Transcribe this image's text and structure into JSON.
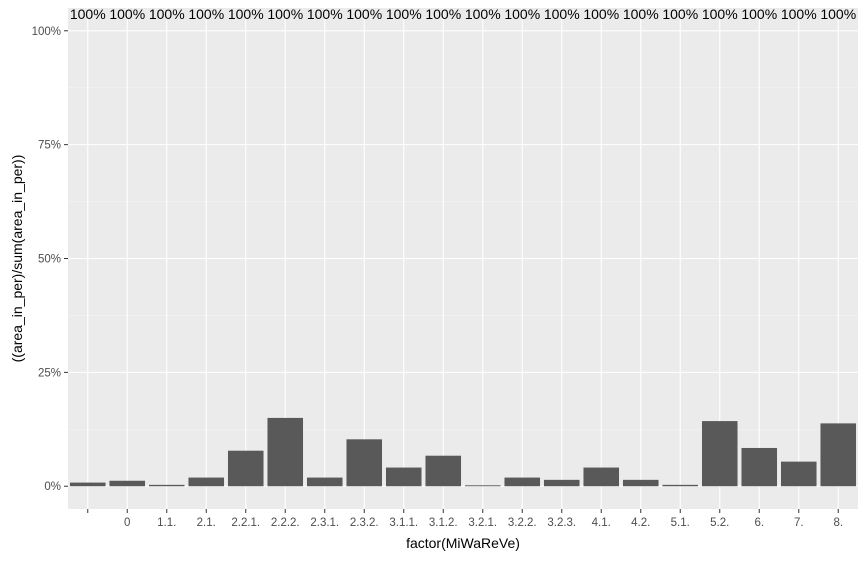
{
  "chart_data": {
    "type": "bar",
    "title": "",
    "xlabel": "factor(MiWaReVe)",
    "ylabel": "((area_in_per)/sum(area_in_per))",
    "categories": [
      "",
      "0",
      "1.1.",
      "2.1.",
      "2.2.1.",
      "2.2.2.",
      "2.3.1.",
      "2.3.2.",
      "3.1.1.",
      "3.1.2.",
      "3.2.1.",
      "3.2.2.",
      "3.2.3.",
      "4.1.",
      "4.2.",
      "5.1.",
      "5.2.",
      "6.",
      "7.",
      "8."
    ],
    "values": [
      0.8,
      1.2,
      0.3,
      1.9,
      7.8,
      15.0,
      1.9,
      10.3,
      4.1,
      6.7,
      0.2,
      1.9,
      1.4,
      4.1,
      1.4,
      0.3,
      14.3,
      8.4,
      5.4,
      13.8
    ],
    "bar_labels": [
      "100%",
      "100%",
      "100%",
      "100%",
      "100%",
      "100%",
      "100%",
      "100%",
      "100%",
      "100%",
      "100%",
      "100%",
      "100%",
      "100%",
      "100%",
      "100%",
      "100%",
      "100%",
      "100%",
      "100%"
    ],
    "y_ticks": [
      "0%",
      "25%",
      "50%",
      "75%",
      "100%"
    ],
    "y_tick_values": [
      0,
      25,
      50,
      75,
      100
    ],
    "ylim": [
      -5,
      105
    ],
    "grid": true,
    "colors": {
      "panel_bg": "#ebebeb",
      "grid_major": "#ffffff",
      "grid_minor": "#f4f4f4",
      "bar": "#595959",
      "axis_text": "#4d4d4d",
      "title_text": "#000000"
    }
  }
}
